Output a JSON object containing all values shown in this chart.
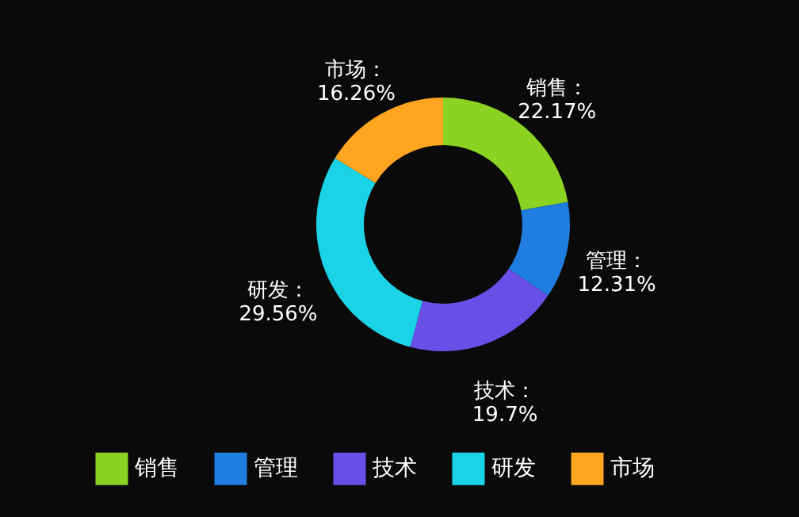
{
  "chart_data": {
    "type": "donut",
    "categories": [
      "销售",
      "管理",
      "技术",
      "研发",
      "市场"
    ],
    "values": [
      22.17,
      12.31,
      19.7,
      29.56,
      16.26
    ],
    "colors": [
      "#8cd223",
      "#1f7ee0",
      "#6a4ee8",
      "#1bd3e6",
      "#ffa51f"
    ],
    "value_labels": [
      "销售：\n22.17%",
      "管理：\n12.31%",
      "技术：\n19.7%",
      "研发：\n29.56%",
      "市场：\n16.26%"
    ],
    "legend": "bottom"
  }
}
